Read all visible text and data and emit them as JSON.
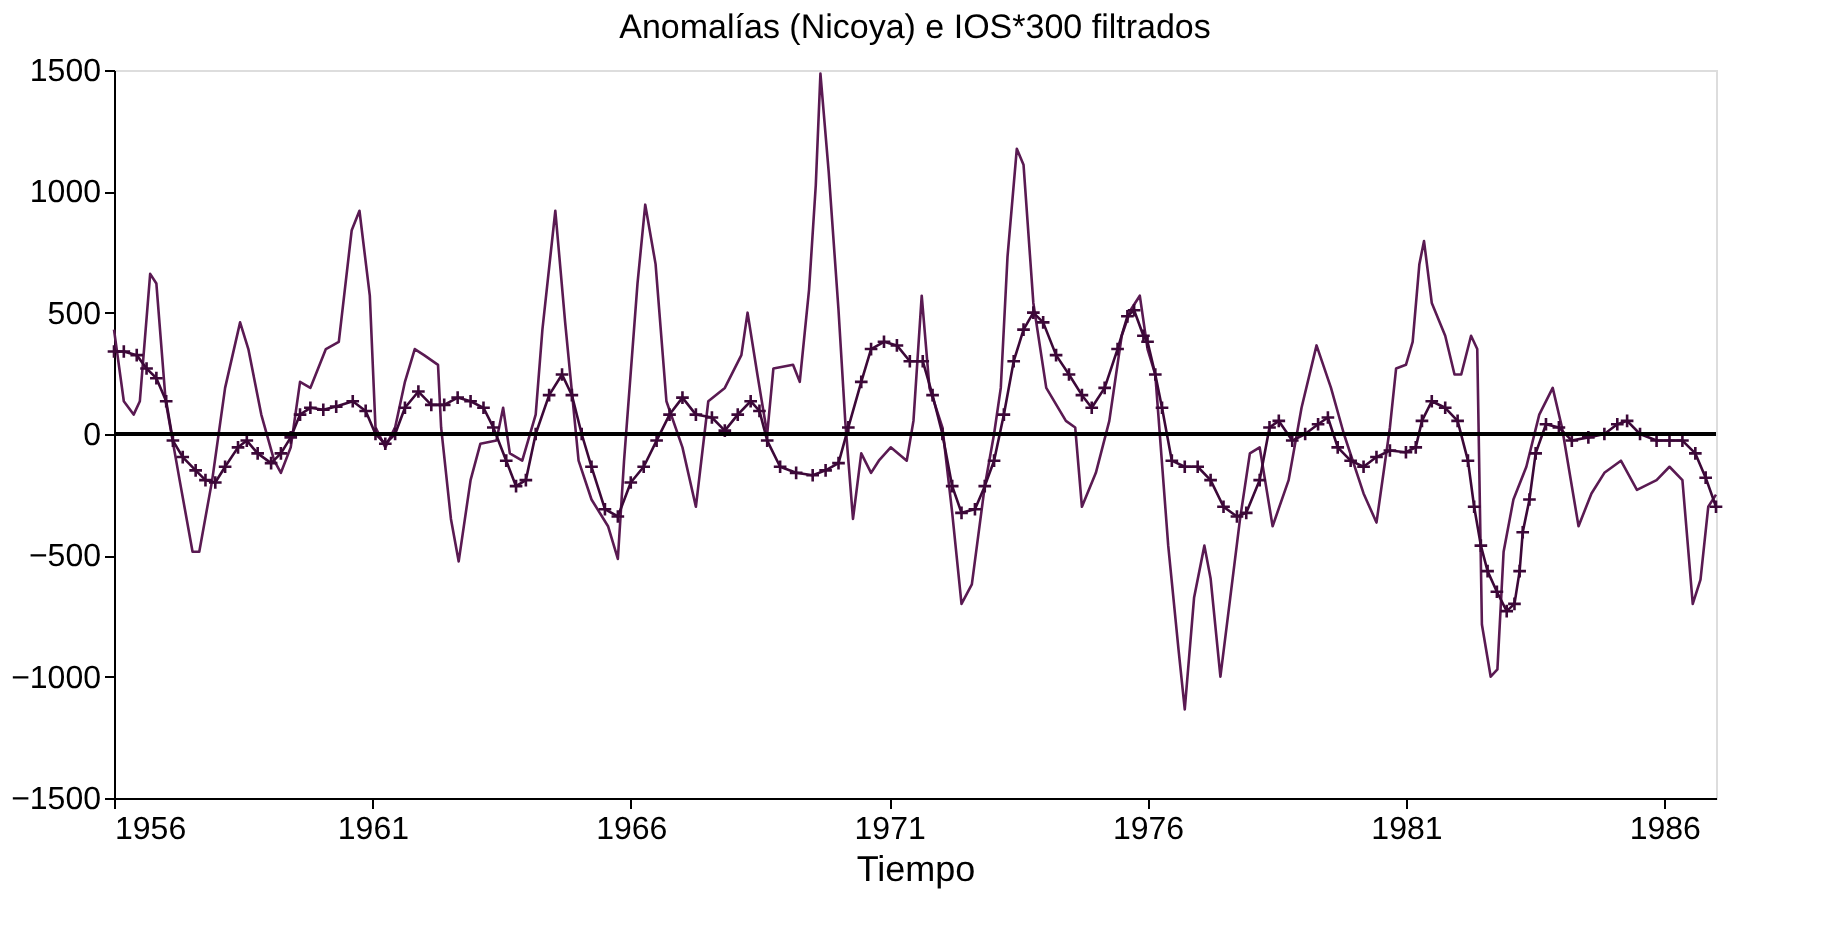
{
  "chart_data": {
    "type": "line",
    "title": "Anomalías (Nicoya) e IOS*300 filtrados",
    "xlabel": "Tiempo",
    "xlim": [
      1956,
      1987
    ],
    "xticks": [
      1956,
      1961,
      1966,
      1971,
      1976,
      1981,
      1986
    ],
    "ylim": [
      -1500,
      1500
    ],
    "yticks": [
      -1500,
      -1000,
      -500,
      0,
      500,
      1000,
      1500
    ],
    "grid": false,
    "ref_lines": [
      {
        "axis": "y",
        "value": 0,
        "color": "#000000",
        "line_style": "solid"
      }
    ],
    "series": [
      {
        "marker": "none",
        "line_style": "solid",
        "color": "#5a1a52",
        "x": [
          1956.0,
          1956.19,
          1956.38,
          1956.5,
          1956.7,
          1956.82,
          1957.0,
          1957.27,
          1957.52,
          1957.65,
          1957.9,
          1958.15,
          1958.44,
          1958.6,
          1958.85,
          1959.1,
          1959.23,
          1959.42,
          1959.6,
          1959.8,
          1960.1,
          1960.35,
          1960.6,
          1960.75,
          1960.95,
          1961.06,
          1961.25,
          1961.44,
          1961.63,
          1961.82,
          1962.0,
          1962.27,
          1962.33,
          1962.52,
          1962.67,
          1962.9,
          1963.09,
          1963.4,
          1963.53,
          1963.66,
          1963.9,
          1964.16,
          1964.29,
          1964.54,
          1964.73,
          1964.99,
          1965.24,
          1965.56,
          1965.75,
          1965.87,
          1966.13,
          1966.28,
          1966.48,
          1966.69,
          1967.0,
          1967.26,
          1967.5,
          1967.82,
          1968.14,
          1968.26,
          1968.45,
          1968.64,
          1968.76,
          1969.14,
          1969.27,
          1969.45,
          1969.58,
          1969.67,
          1969.83,
          1970.02,
          1970.15,
          1970.3,
          1970.46,
          1970.65,
          1970.8,
          1971.03,
          1971.34,
          1971.47,
          1971.63,
          1971.78,
          1972.03,
          1972.22,
          1972.4,
          1972.6,
          1972.85,
          1973.03,
          1973.16,
          1973.29,
          1973.47,
          1973.6,
          1973.79,
          1974.04,
          1974.42,
          1974.6,
          1974.73,
          1975.0,
          1975.26,
          1975.5,
          1975.67,
          1975.85,
          1976.0,
          1976.15,
          1976.4,
          1976.6,
          1976.72,
          1976.9,
          1977.1,
          1977.22,
          1977.41,
          1977.6,
          1977.79,
          1977.98,
          1978.17,
          1978.42,
          1978.73,
          1978.98,
          1979.27,
          1979.55,
          1979.8,
          1980.18,
          1980.43,
          1980.69,
          1980.81,
          1981.0,
          1981.13,
          1981.26,
          1981.35,
          1981.5,
          1981.76,
          1981.94,
          1982.07,
          1982.26,
          1982.38,
          1982.47,
          1982.64,
          1982.77,
          1982.89,
          1983.08,
          1983.33,
          1983.58,
          1983.84,
          1984.02,
          1984.34,
          1984.59,
          1984.84,
          1985.16,
          1985.47,
          1985.85,
          1986.1,
          1986.35,
          1986.55,
          1986.7,
          1986.85,
          1987.0
        ],
        "values": [
          430,
          135,
          80,
          135,
          660,
          620,
          135,
          -190,
          -485,
          -485,
          -190,
          190,
          460,
          350,
          80,
          -110,
          -160,
          -55,
          215,
          190,
          350,
          380,
          840,
          920,
          570,
          27,
          -55,
          27,
          215,
          350,
          325,
          285,
          27,
          -350,
          -525,
          -190,
          -40,
          -27,
          108,
          -80,
          -110,
          80,
          430,
          920,
          460,
          -110,
          -270,
          -380,
          -515,
          -110,
          620,
          945,
          700,
          135,
          -55,
          -300,
          135,
          190,
          325,
          500,
          245,
          0,
          270,
          285,
          215,
          595,
          1025,
          1485,
          1080,
          510,
          54,
          -350,
          -80,
          -160,
          -110,
          -55,
          -110,
          54,
          570,
          190,
          27,
          -325,
          -700,
          -620,
          -215,
          0,
          190,
          730,
          1175,
          1110,
          540,
          190,
          54,
          27,
          -300,
          -160,
          54,
          405,
          510,
          570,
          350,
          245,
          -460,
          -890,
          -1135,
          -675,
          -460,
          -595,
          -1000,
          -675,
          -350,
          -80,
          -55,
          -380,
          -190,
          108,
          365,
          190,
          0,
          -245,
          -365,
          27,
          270,
          285,
          380,
          700,
          795,
          540,
          405,
          245,
          245,
          405,
          350,
          -785,
          -1000,
          -970,
          -485,
          -270,
          -135,
          80,
          190,
          27,
          -380,
          -245,
          -160,
          -110,
          -230,
          -190,
          -135,
          -190,
          -700,
          -600,
          -300,
          -250
        ]
      },
      {
        "marker": "cross",
        "line_style": "solid",
        "color": "#3c0838",
        "x": [
          1956.0,
          1956.19,
          1956.44,
          1956.63,
          1956.82,
          1957.01,
          1957.14,
          1957.33,
          1957.58,
          1957.77,
          1957.96,
          1958.15,
          1958.4,
          1958.57,
          1958.78,
          1959.04,
          1959.23,
          1959.42,
          1959.6,
          1959.8,
          1960.05,
          1960.3,
          1960.62,
          1960.87,
          1961.06,
          1961.25,
          1961.44,
          1961.63,
          1961.89,
          1962.14,
          1962.39,
          1962.65,
          1962.9,
          1963.15,
          1963.34,
          1963.59,
          1963.78,
          1963.97,
          1964.16,
          1964.42,
          1964.67,
          1964.86,
          1965.05,
          1965.24,
          1965.5,
          1965.75,
          1966.0,
          1966.25,
          1966.5,
          1966.75,
          1967.0,
          1967.26,
          1967.57,
          1967.82,
          1968.07,
          1968.32,
          1968.49,
          1968.64,
          1968.89,
          1969.2,
          1969.52,
          1969.77,
          1970.02,
          1970.21,
          1970.46,
          1970.65,
          1970.9,
          1971.15,
          1971.4,
          1971.65,
          1971.84,
          1972.03,
          1972.22,
          1972.4,
          1972.66,
          1972.85,
          1973.03,
          1973.22,
          1973.41,
          1973.6,
          1973.79,
          1973.98,
          1974.23,
          1974.48,
          1974.73,
          1974.92,
          1975.17,
          1975.42,
          1975.61,
          1975.74,
          1975.92,
          1976.0,
          1976.15,
          1976.28,
          1976.47,
          1976.72,
          1976.97,
          1977.22,
          1977.47,
          1977.73,
          1977.91,
          1978.17,
          1978.36,
          1978.54,
          1978.8,
          1979.05,
          1979.3,
          1979.49,
          1979.68,
          1979.93,
          1980.18,
          1980.43,
          1980.69,
          1981.0,
          1981.19,
          1981.31,
          1981.5,
          1981.76,
          1982.0,
          1982.2,
          1982.32,
          1982.45,
          1982.58,
          1982.76,
          1982.95,
          1983.1,
          1983.2,
          1983.26,
          1983.39,
          1983.51,
          1983.71,
          1983.96,
          1984.21,
          1984.53,
          1984.84,
          1985.09,
          1985.28,
          1985.53,
          1985.85,
          1986.1,
          1986.35,
          1986.6,
          1986.8,
          1987.0
        ],
        "values": [
          340,
          340,
          325,
          270,
          230,
          135,
          -27,
          -95,
          -150,
          -190,
          -200,
          -135,
          -55,
          -27,
          -80,
          -120,
          -80,
          -14,
          80,
          108,
          100,
          113,
          135,
          95,
          0,
          -40,
          0,
          108,
          175,
          120,
          120,
          150,
          135,
          108,
          27,
          -110,
          -215,
          -190,
          0,
          160,
          245,
          160,
          0,
          -135,
          -310,
          -340,
          -200,
          -135,
          -27,
          80,
          150,
          80,
          68,
          14,
          80,
          135,
          95,
          -27,
          -135,
          -160,
          -170,
          -150,
          -120,
          27,
          215,
          350,
          380,
          365,
          300,
          300,
          160,
          0,
          -215,
          -325,
          -310,
          -215,
          -110,
          80,
          300,
          430,
          500,
          460,
          325,
          245,
          160,
          108,
          190,
          350,
          485,
          510,
          405,
          380,
          245,
          108,
          -110,
          -135,
          -135,
          -190,
          -300,
          -340,
          -325,
          -190,
          27,
          54,
          -27,
          0,
          40,
          68,
          -55,
          -110,
          -135,
          -95,
          -68,
          -75,
          -55,
          54,
          135,
          108,
          54,
          -110,
          -300,
          -460,
          -565,
          -650,
          -730,
          -700,
          -565,
          -405,
          -270,
          -80,
          40,
          27,
          -27,
          -14,
          0,
          40,
          54,
          0,
          -27,
          -27,
          -27,
          -80,
          -180,
          -300
        ]
      }
    ]
  }
}
